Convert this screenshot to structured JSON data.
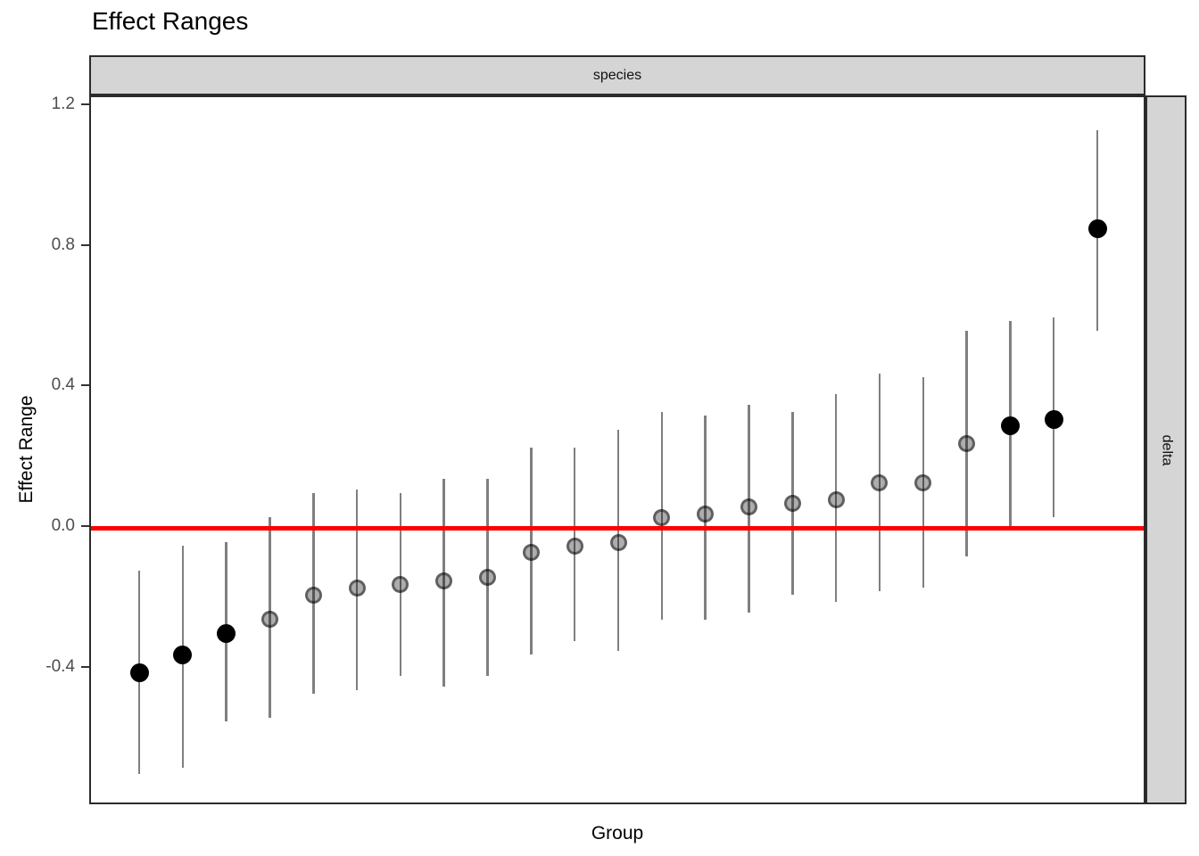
{
  "chart_data": {
    "type": "scatter",
    "title": "Effect Ranges",
    "xlabel": "Group",
    "ylabel": "Effect Range",
    "facet_top": "species",
    "facet_right": "delta",
    "grid": false,
    "legend": false,
    "ylim": [
      -0.79,
      1.225
    ],
    "yticks": [
      {
        "value": 1.2,
        "label": "1.2"
      },
      {
        "value": 0.8,
        "label": "0.8"
      },
      {
        "value": 0.4,
        "label": "0.4"
      },
      {
        "value": 0.0,
        "label": "0.0"
      },
      {
        "value": -0.4,
        "label": "-0.4"
      }
    ],
    "reference_line": {
      "y": 0.0,
      "color": "#FF0000"
    },
    "colors": {
      "significant_point": "#000000",
      "error_bar": "#7F7F7F",
      "strip_fill": "#D5D5D5",
      "panel_border": "#2B2B2B",
      "tick_label": "#4D4D4D"
    },
    "points": [
      {
        "estimate": -0.41,
        "lower": -0.7,
        "upper": -0.12,
        "style": "black"
      },
      {
        "estimate": -0.36,
        "lower": -0.68,
        "upper": -0.05,
        "style": "black"
      },
      {
        "estimate": -0.3,
        "lower": -0.55,
        "upper": -0.04,
        "style": "black"
      },
      {
        "estimate": -0.26,
        "lower": -0.54,
        "upper": 0.03,
        "style": "gray"
      },
      {
        "estimate": -0.19,
        "lower": -0.47,
        "upper": 0.1,
        "style": "gray"
      },
      {
        "estimate": -0.17,
        "lower": -0.46,
        "upper": 0.11,
        "style": "gray"
      },
      {
        "estimate": -0.16,
        "lower": -0.42,
        "upper": 0.1,
        "style": "gray"
      },
      {
        "estimate": -0.15,
        "lower": -0.45,
        "upper": 0.14,
        "style": "gray"
      },
      {
        "estimate": -0.14,
        "lower": -0.42,
        "upper": 0.14,
        "style": "gray"
      },
      {
        "estimate": -0.07,
        "lower": -0.36,
        "upper": 0.23,
        "style": "gray"
      },
      {
        "estimate": -0.05,
        "lower": -0.32,
        "upper": 0.23,
        "style": "gray"
      },
      {
        "estimate": -0.04,
        "lower": -0.35,
        "upper": 0.28,
        "style": "gray"
      },
      {
        "estimate": 0.03,
        "lower": -0.26,
        "upper": 0.33,
        "style": "gray"
      },
      {
        "estimate": 0.04,
        "lower": -0.26,
        "upper": 0.32,
        "style": "gray"
      },
      {
        "estimate": 0.06,
        "lower": -0.24,
        "upper": 0.35,
        "style": "gray"
      },
      {
        "estimate": 0.07,
        "lower": -0.19,
        "upper": 0.33,
        "style": "gray"
      },
      {
        "estimate": 0.08,
        "lower": -0.21,
        "upper": 0.38,
        "style": "gray"
      },
      {
        "estimate": 0.13,
        "lower": -0.18,
        "upper": 0.44,
        "style": "gray"
      },
      {
        "estimate": 0.13,
        "lower": -0.17,
        "upper": 0.43,
        "style": "gray"
      },
      {
        "estimate": 0.24,
        "lower": -0.08,
        "upper": 0.56,
        "style": "gray"
      },
      {
        "estimate": 0.29,
        "lower": 0.0,
        "upper": 0.59,
        "style": "black"
      },
      {
        "estimate": 0.31,
        "lower": 0.03,
        "upper": 0.6,
        "style": "black"
      },
      {
        "estimate": 0.85,
        "lower": 0.56,
        "upper": 1.13,
        "style": "black"
      }
    ]
  }
}
